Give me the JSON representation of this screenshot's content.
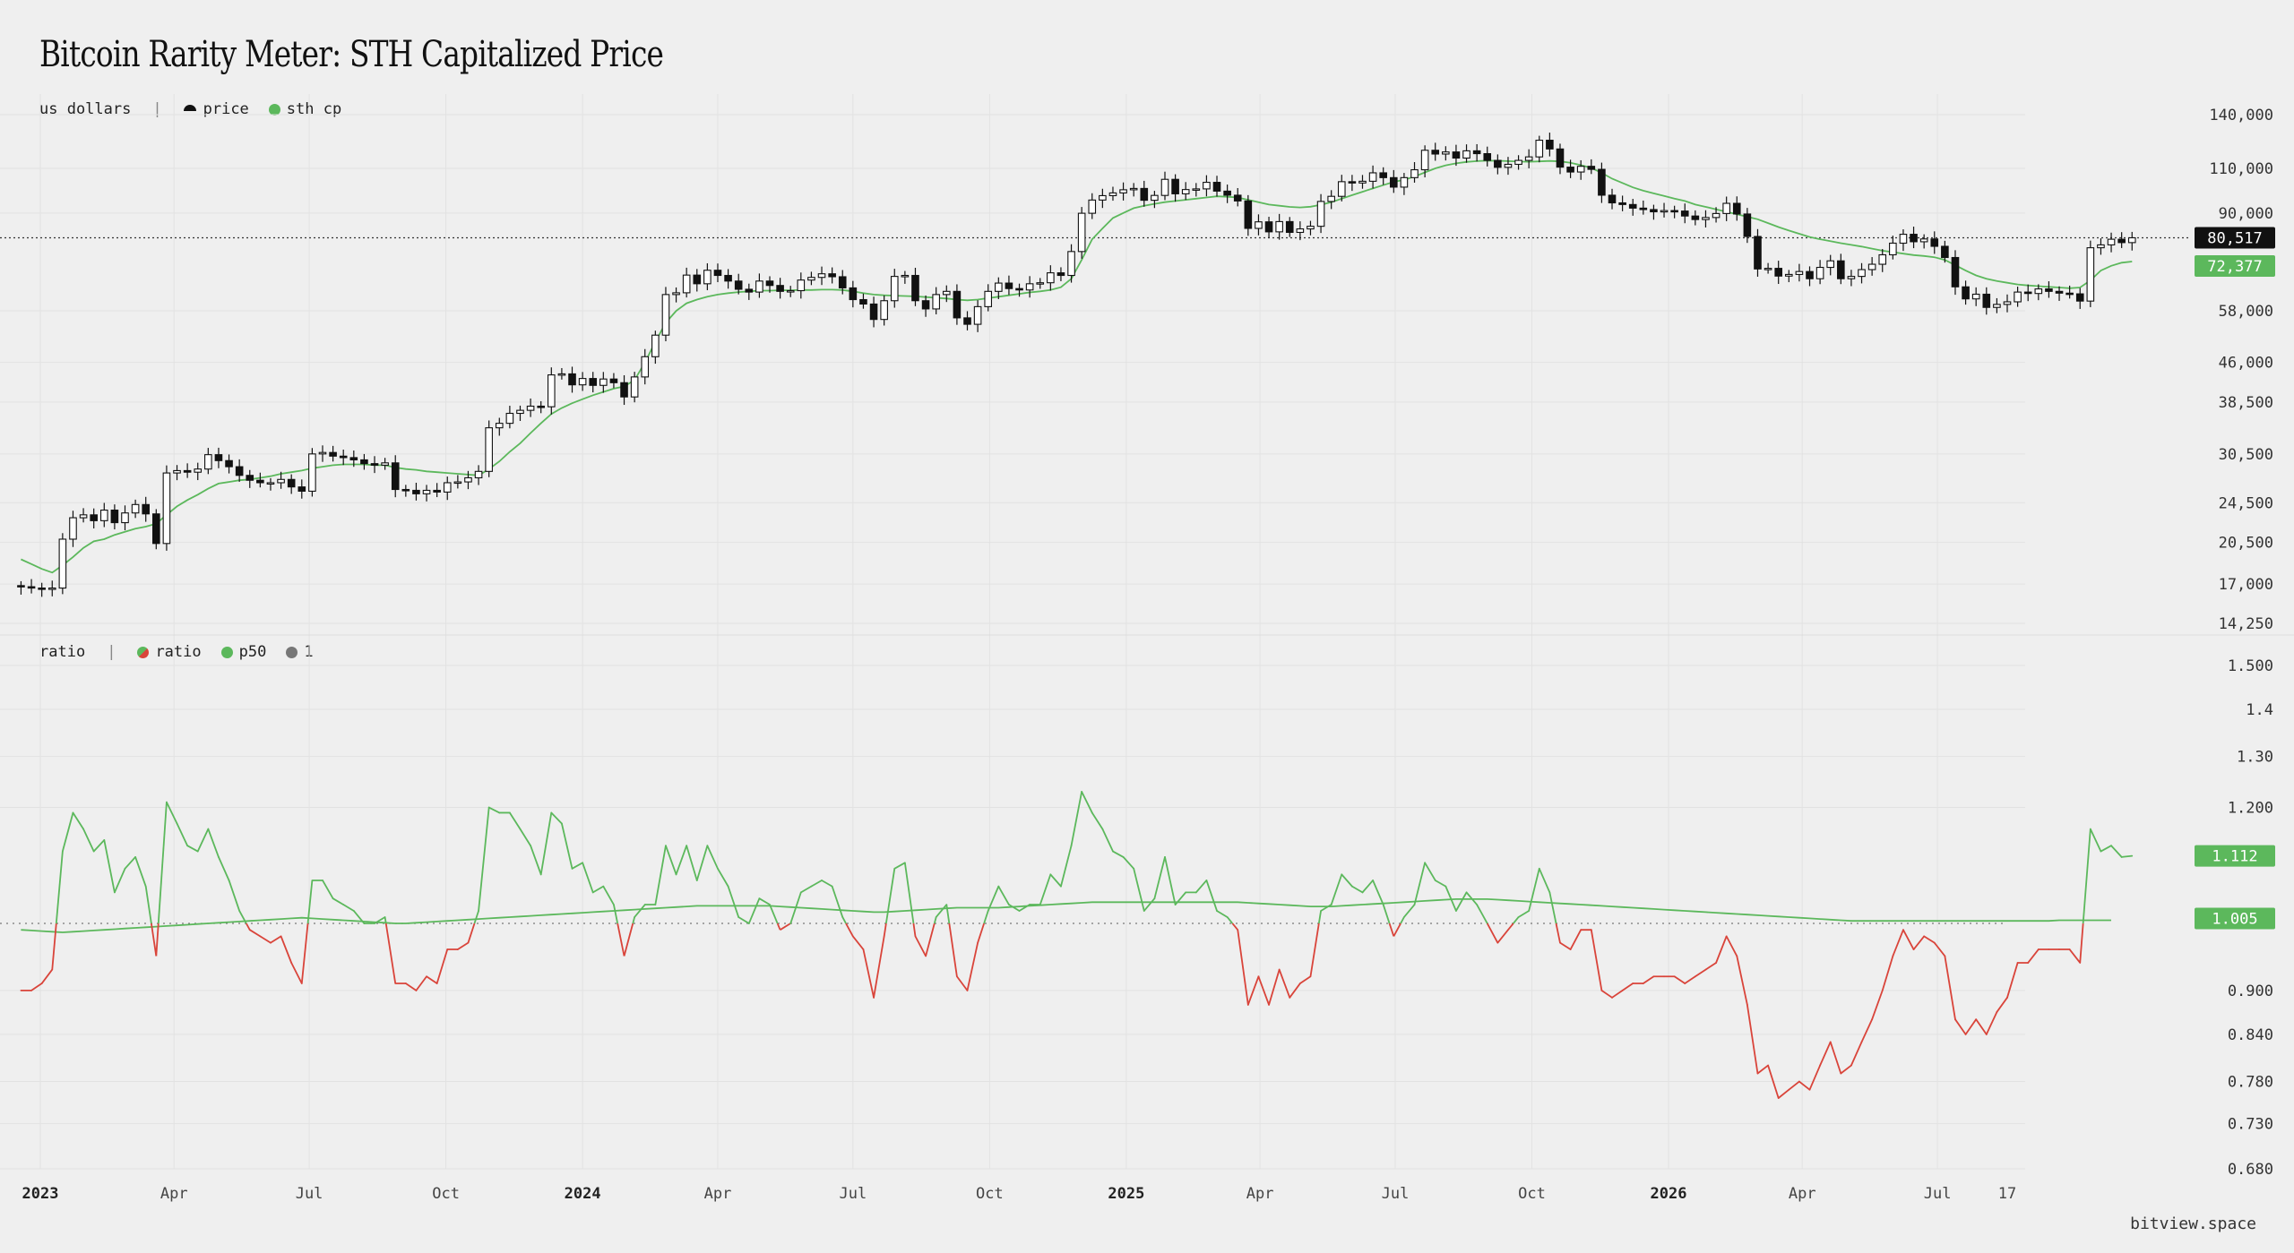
{
  "title": "Bitcoin Rarity Meter: STH Capitalized Price",
  "footer": "bitview.space",
  "colors": {
    "background": "#efefef",
    "grid": "#e2e2e2",
    "candle": "#111111",
    "sth_cp": "#5cb85c",
    "ratio_above": "#5cb85c",
    "ratio_below": "#d9443a",
    "one_line": "#777777"
  },
  "top_pane": {
    "legend_unit": "us dollars",
    "legend_separator": "|",
    "legend_items": [
      {
        "label": "price",
        "icon": "half-circle-icon",
        "color": "#111111"
      },
      {
        "label": "sth cp",
        "icon": "dot-icon",
        "color": "#5cb85c"
      }
    ],
    "scale": "log",
    "y_ticks": [
      "140,000",
      "110,000",
      "90,000",
      "58,000",
      "46,000",
      "38,500",
      "30,500",
      "24,500",
      "20,500",
      "17,000",
      "14,250"
    ],
    "last_price_label": "80,517",
    "last_sth_label": "72,377"
  },
  "bottom_pane": {
    "legend_unit": "ratio",
    "legend_separator": "|",
    "legend_items": [
      {
        "label": "ratio",
        "icon": "split-dot-icon",
        "color": "#d9443a"
      },
      {
        "label": "p50",
        "icon": "dot-icon",
        "color": "#5cb85c"
      },
      {
        "label": "1",
        "icon": "dot-icon",
        "color": "#777777"
      }
    ],
    "scale": "log",
    "y_ticks": [
      "1.500",
      "1.4",
      "1.30",
      "1.200",
      "0.900",
      "0.840",
      "0.780",
      "0.730",
      "0.680"
    ],
    "last_ratio_label": "1.112",
    "last_p50_label": "1.005"
  },
  "x_ticks": [
    {
      "label": "2023",
      "year": true
    },
    {
      "label": "Apr",
      "year": false
    },
    {
      "label": "Jul",
      "year": false
    },
    {
      "label": "Oct",
      "year": false
    },
    {
      "label": "2024",
      "year": true
    },
    {
      "label": "Apr",
      "year": false
    },
    {
      "label": "Jul",
      "year": false
    },
    {
      "label": "Oct",
      "year": false
    },
    {
      "label": "2025",
      "year": true
    },
    {
      "label": "Apr",
      "year": false
    },
    {
      "label": "Jul",
      "year": false
    },
    {
      "label": "Oct",
      "year": false
    },
    {
      "label": "2026",
      "year": true
    },
    {
      "label": "Apr",
      "year": false
    },
    {
      "label": "Jul",
      "year": false
    },
    {
      "label": "17",
      "year": false
    }
  ],
  "chart_data": [
    {
      "type": "candlestick",
      "series_name": "price",
      "x_start": "2022-12-19",
      "x_step_days": 7,
      "ylim": [
        14250,
        150000
      ],
      "close": [
        16800,
        16700,
        16600,
        16700,
        20800,
        22900,
        23200,
        22600,
        23700,
        22400,
        23400,
        24300,
        23300,
        20400,
        28000,
        28300,
        28100,
        28500,
        30400,
        29600,
        28800,
        27700,
        27100,
        26800,
        26800,
        27200,
        26300,
        25800,
        30500,
        30700,
        30200,
        30000,
        29700,
        29200,
        29000,
        29300,
        26000,
        25900,
        25500,
        25900,
        25700,
        26800,
        26900,
        27400,
        28200,
        34300,
        35000,
        36600,
        37100,
        37800,
        37700,
        43500,
        43700,
        41600,
        42800,
        41500,
        42700,
        42000,
        39400,
        43100,
        47200,
        52000,
        62400,
        62900,
        68100,
        65500,
        69600,
        68000,
        66300,
        63900,
        63100,
        66300,
        65000,
        63300,
        63500,
        66600,
        67400,
        68500,
        67600,
        64300,
        61000,
        59800,
        55800,
        60700,
        67700,
        68000,
        60700,
        58500,
        62400,
        63300,
        56200,
        54600,
        59100,
        63300,
        65700,
        64100,
        63700,
        65500,
        65800,
        68800,
        68000,
        75700,
        89900,
        95400,
        97300,
        98500,
        99900,
        100500,
        95300,
        97400,
        104700,
        98100,
        100000,
        100300,
        103300,
        99300,
        97500,
        95000,
        84000,
        86500,
        82700,
        86600,
        82500,
        83800,
        84800,
        94800,
        97000,
        103600,
        103000,
        103800,
        107800,
        105500,
        101100,
        105500,
        109300,
        119300,
        117300,
        118400,
        115200,
        119000,
        117500,
        114000,
        110500,
        112000,
        114000,
        115800,
        124800,
        120000,
        110600,
        108200,
        111000,
        109500,
        97500,
        94200,
        93500,
        92000,
        91400,
        90500,
        91000,
        90800,
        88800,
        87400,
        88200,
        89800,
        94000,
        89600,
        81000,
        70000,
        70200,
        67800,
        68300,
        69200,
        67000,
        70500,
        72600,
        67000,
        67700,
        69800,
        71500,
        74600,
        78600,
        81800,
        79100,
        80100,
        77500,
        73700,
        64600,
        61200,
        62500,
        58900,
        59700,
        60400,
        63100,
        62700,
        64000,
        63300,
        62800,
        62600,
        60600,
        77000,
        78000,
        80000,
        78800,
        80517
      ],
      "open_close_high_low_note": "open of each candle equals previous close; wicks extend slightly beyond body"
    },
    {
      "type": "line",
      "series_name": "sth cp",
      "x_start": "2022-12-19",
      "x_step_days": 7,
      "values": [
        19000,
        18600,
        18200,
        17900,
        18500,
        19200,
        20000,
        20600,
        20800,
        21200,
        21500,
        21800,
        22000,
        22300,
        23200,
        24100,
        24800,
        25400,
        26100,
        26700,
        26900,
        27100,
        27200,
        27400,
        27600,
        27900,
        28100,
        28300,
        28600,
        28800,
        29000,
        29100,
        29100,
        29100,
        29000,
        29000,
        28700,
        28500,
        28400,
        28200,
        28100,
        28000,
        27900,
        27800,
        27700,
        28500,
        29500,
        30800,
        32000,
        33500,
        35000,
        36500,
        37500,
        38300,
        39000,
        39700,
        40300,
        40900,
        41300,
        42500,
        46000,
        50500,
        55000,
        58000,
        60000,
        61000,
        61800,
        62400,
        62800,
        63100,
        63300,
        63500,
        63500,
        63600,
        63600,
        63700,
        63700,
        63800,
        63800,
        63700,
        63300,
        62800,
        62400,
        62200,
        62100,
        62000,
        61900,
        61700,
        61500,
        61300,
        61000,
        60800,
        61000,
        61400,
        61800,
        62200,
        62600,
        63000,
        63300,
        63700,
        64500,
        67000,
        73000,
        80000,
        84000,
        88000,
        90000,
        92000,
        93000,
        93800,
        94500,
        95000,
        95500,
        96000,
        96500,
        97000,
        96800,
        96500,
        95500,
        94500,
        93500,
        93000,
        92500,
        92300,
        92600,
        93400,
        94500,
        96000,
        97500,
        99000,
        100500,
        102000,
        103500,
        104500,
        106000,
        108000,
        110000,
        111500,
        112500,
        113200,
        113600,
        113900,
        113800,
        113600,
        113400,
        113300,
        113500,
        113700,
        113500,
        112800,
        111600,
        110200,
        107800,
        105000,
        103000,
        101000,
        99500,
        98300,
        97200,
        96000,
        95000,
        93500,
        92500,
        91500,
        90500,
        89500,
        88500,
        87500,
        86000,
        84500,
        83200,
        82000,
        80800,
        80000,
        79300,
        78600,
        78000,
        77400,
        76700,
        76000,
        75500,
        75000,
        74500,
        74200,
        73800,
        72900,
        71200,
        69500,
        68000,
        67000,
        66300,
        65800,
        65300,
        65000,
        64800,
        64600,
        64400,
        64200,
        64400,
        66500,
        69500,
        71000,
        72000,
        72377
      ]
    },
    {
      "type": "line",
      "series_name": "ratio",
      "x_start": "2022-12-19",
      "x_step_days": 7,
      "ylim": [
        0.68,
        1.5
      ],
      "reference_line": 1,
      "values": [
        0.9,
        0.9,
        0.91,
        0.93,
        1.12,
        1.19,
        1.16,
        1.12,
        1.14,
        1.05,
        1.09,
        1.11,
        1.06,
        0.95,
        1.21,
        1.17,
        1.13,
        1.12,
        1.16,
        1.11,
        1.07,
        1.02,
        0.99,
        0.98,
        0.97,
        0.98,
        0.94,
        0.91,
        1.07,
        1.07,
        1.04,
        1.03,
        1.02,
        1.0,
        1.0,
        1.01,
        0.91,
        0.91,
        0.9,
        0.92,
        0.91,
        0.96,
        0.96,
        0.97,
        1.02,
        1.2,
        1.19,
        1.19,
        1.16,
        1.13,
        1.08,
        1.19,
        1.17,
        1.09,
        1.1,
        1.05,
        1.06,
        1.03,
        0.95,
        1.01,
        1.03,
        1.03,
        1.13,
        1.08,
        1.13,
        1.07,
        1.13,
        1.09,
        1.06,
        1.01,
        1.0,
        1.04,
        1.03,
        0.99,
        1.0,
        1.05,
        1.06,
        1.07,
        1.06,
        1.01,
        0.98,
        0.96,
        0.89,
        0.98,
        1.09,
        1.1,
        0.98,
        0.95,
        1.01,
        1.03,
        0.92,
        0.9,
        0.97,
        1.02,
        1.06,
        1.03,
        1.02,
        1.03,
        1.03,
        1.08,
        1.06,
        1.13,
        1.23,
        1.19,
        1.16,
        1.12,
        1.11,
        1.09,
        1.02,
        1.04,
        1.11,
        1.03,
        1.05,
        1.05,
        1.07,
        1.02,
        1.01,
        0.99,
        0.88,
        0.92,
        0.88,
        0.93,
        0.89,
        0.91,
        0.92,
        1.02,
        1.03,
        1.08,
        1.06,
        1.05,
        1.07,
        1.03,
        0.98,
        1.01,
        1.03,
        1.1,
        1.07,
        1.06,
        1.02,
        1.05,
        1.03,
        1.0,
        0.97,
        0.99,
        1.01,
        1.02,
        1.09,
        1.05,
        0.97,
        0.96,
        0.99,
        0.99,
        0.9,
        0.89,
        0.9,
        0.91,
        0.91,
        0.92,
        0.92,
        0.92,
        0.91,
        0.92,
        0.93,
        0.94,
        0.98,
        0.95,
        0.88,
        0.79,
        0.8,
        0.76,
        0.77,
        0.78,
        0.77,
        0.8,
        0.83,
        0.79,
        0.8,
        0.83,
        0.86,
        0.9,
        0.95,
        0.99,
        0.96,
        0.98,
        0.97,
        0.95,
        0.86,
        0.84,
        0.86,
        0.84,
        0.87,
        0.89,
        0.94,
        0.94,
        0.96,
        0.96,
        0.96,
        0.96,
        0.94,
        1.16,
        1.12,
        1.13,
        1.11,
        1.112
      ]
    },
    {
      "type": "line",
      "series_name": "p50",
      "x_start": "2022-12-19",
      "x_step_days": 7,
      "values_note": "slowly varying median, about 0.99 rising to 1.02 then easing back",
      "values": [
        0.99,
        0.989,
        0.988,
        0.987,
        0.986,
        0.987,
        0.988,
        0.989,
        0.99,
        0.991,
        0.992,
        0.993,
        0.994,
        0.995,
        0.996,
        0.997,
        0.998,
        0.999,
        1.0,
        1.001,
        1.002,
        1.003,
        1.004,
        1.005,
        1.006,
        1.007,
        1.008,
        1.009,
        1.008,
        1.007,
        1.006,
        1.005,
        1.004,
        1.003,
        1.002,
        1.001,
        1.0,
        1.0,
        1.001,
        1.002,
        1.003,
        1.004,
        1.005,
        1.006,
        1.007,
        1.008,
        1.009,
        1.01,
        1.011,
        1.012,
        1.013,
        1.014,
        1.015,
        1.016,
        1.017,
        1.018,
        1.019,
        1.02,
        1.021,
        1.022,
        1.023,
        1.024,
        1.025,
        1.026,
        1.027,
        1.028,
        1.028,
        1.028,
        1.028,
        1.028,
        1.028,
        1.028,
        1.028,
        1.027,
        1.026,
        1.025,
        1.024,
        1.023,
        1.022,
        1.021,
        1.02,
        1.019,
        1.018,
        1.018,
        1.019,
        1.02,
        1.021,
        1.022,
        1.023,
        1.024,
        1.025,
        1.025,
        1.025,
        1.025,
        1.025,
        1.026,
        1.027,
        1.028,
        1.029,
        1.03,
        1.031,
        1.032,
        1.033,
        1.034,
        1.034,
        1.034,
        1.034,
        1.034,
        1.034,
        1.034,
        1.034,
        1.034,
        1.034,
        1.034,
        1.034,
        1.034,
        1.034,
        1.034,
        1.033,
        1.032,
        1.031,
        1.03,
        1.029,
        1.028,
        1.027,
        1.027,
        1.027,
        1.028,
        1.029,
        1.03,
        1.031,
        1.032,
        1.033,
        1.034,
        1.035,
        1.036,
        1.037,
        1.038,
        1.039,
        1.039,
        1.039,
        1.039,
        1.038,
        1.037,
        1.036,
        1.035,
        1.034,
        1.033,
        1.032,
        1.031,
        1.03,
        1.029,
        1.028,
        1.027,
        1.026,
        1.025,
        1.024,
        1.023,
        1.022,
        1.021,
        1.02,
        1.019,
        1.018,
        1.017,
        1.016,
        1.015,
        1.014,
        1.013,
        1.012,
        1.011,
        1.01,
        1.009,
        1.008,
        1.007,
        1.006,
        1.005,
        1.004,
        1.004,
        1.004,
        1.004,
        1.004,
        1.004,
        1.004,
        1.004,
        1.004,
        1.004,
        1.004,
        1.004,
        1.004,
        1.004,
        1.004,
        1.004,
        1.004,
        1.004,
        1.004,
        1.004,
        1.005,
        1.005,
        1.005,
        1.005,
        1.005,
        1.005
      ]
    }
  ]
}
